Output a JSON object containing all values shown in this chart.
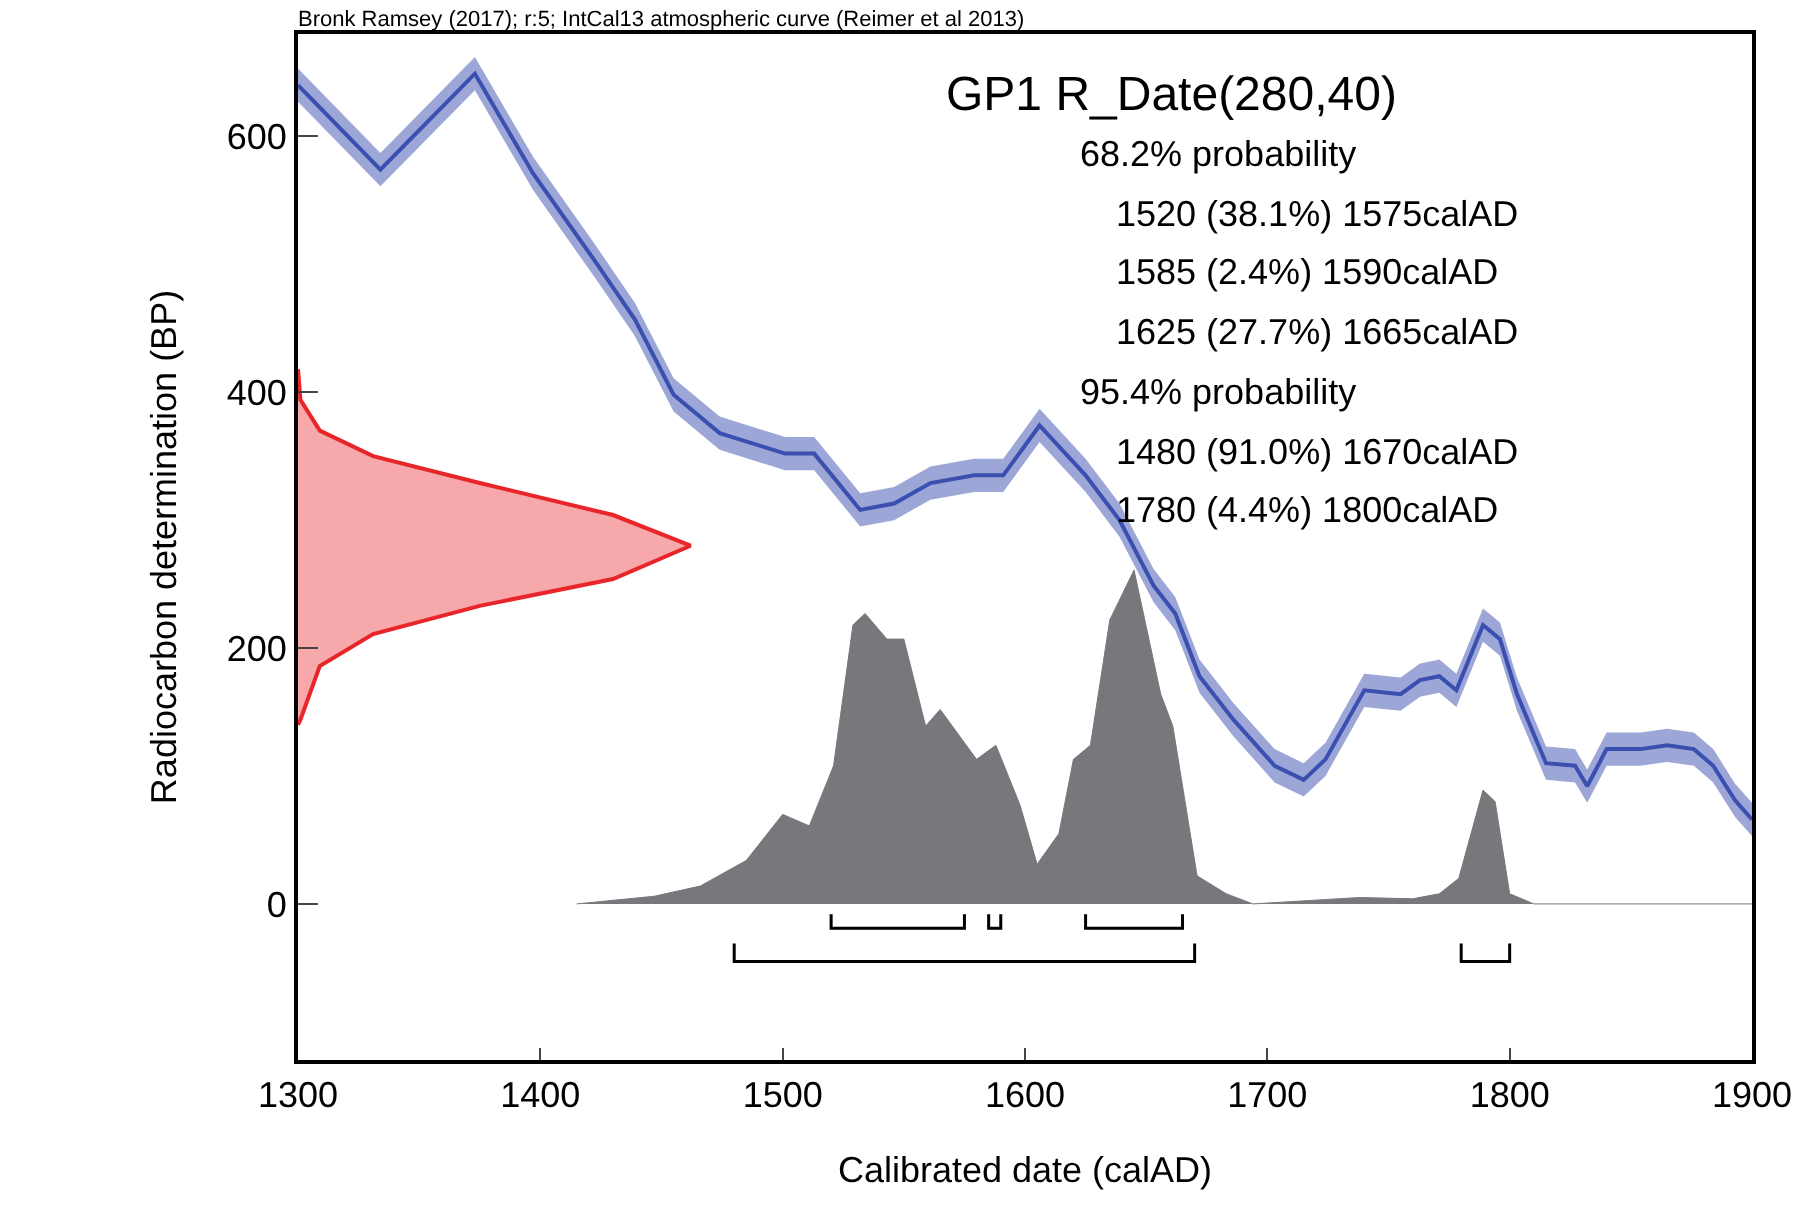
{
  "chart_data": {
    "type": "line",
    "title": "Bronk Ramsey (2017); r:5; IntCal13 atmospheric curve (Reimer et al 2013)",
    "subtitle": "GP1 R_Date(280,40)",
    "xlabel": "Calibrated date (calAD)",
    "ylabel": "Radiocarbon determination (BP)",
    "annotations": [
      "68.2% probability",
      "  1520 (38.1%) 1575calAD",
      "  1585 (2.4%) 1590calAD",
      "  1625 (27.7%) 1665calAD",
      "95.4% probability",
      "  1480 (91.0%) 1670calAD",
      "  1780 (4.4%) 1800calAD"
    ],
    "xlim": [
      1300,
      1900
    ],
    "xticks": [
      1300,
      1400,
      1500,
      1600,
      1700,
      1800,
      1900
    ],
    "ylim": [
      -122,
      680
    ],
    "yticks": [
      0,
      200,
      400,
      600
    ],
    "grid": false,
    "series": [
      {
        "type": "area",
        "color": "#e8262a",
        "x": [
          1300,
          1301,
          1309,
          1331,
          1375,
          1430,
          1462,
          1430,
          1375,
          1331,
          1309,
          1301,
          1300
        ],
        "values": [
          418,
          394,
          370,
          350,
          329,
          304,
          280,
          254,
          233,
          211,
          186,
          144,
          140
        ]
      },
      {
        "type": "area",
        "color": "#77787c",
        "x": [
          1415,
          1447,
          1466,
          1485,
          1500,
          1511,
          1521,
          1529,
          1534,
          1543,
          1550,
          1559,
          1565,
          1580,
          1588,
          1598,
          1605,
          1614,
          1620,
          1627,
          1635,
          1645,
          1656,
          1661,
          1671,
          1683,
          1694,
          1738,
          1760,
          1771,
          1779,
          1789,
          1794,
          1800,
          1810,
          1900
        ],
        "values": [
          0,
          6,
          14,
          34,
          70,
          61,
          108,
          218,
          227,
          207,
          207,
          139,
          152,
          113,
          124,
          77,
          31,
          55,
          113,
          124,
          222,
          261,
          164,
          139,
          22,
          8,
          0,
          5,
          4,
          8,
          20,
          89,
          80,
          8,
          0,
          0
        ]
      },
      {
        "color": "#3a4fb0",
        "x": [
          1300,
          1334,
          1373,
          1397,
          1422,
          1439,
          1455,
          1474,
          1501,
          1513,
          1532,
          1546,
          1561,
          1579,
          1591,
          1606,
          1625,
          1639,
          1653,
          1662,
          1672,
          1686,
          1703,
          1715,
          1724,
          1740,
          1755,
          1763,
          1771,
          1778,
          1789,
          1796,
          1803,
          1815,
          1827,
          1832,
          1840,
          1854,
          1865,
          1876,
          1884,
          1893,
          1900
        ],
        "values": [
          640,
          574,
          649,
          571,
          504,
          457,
          398,
          368,
          352,
          352,
          308,
          313,
          329,
          335,
          335,
          374,
          335,
          300,
          249,
          227,
          178,
          144,
          108,
          97,
          113,
          167,
          164,
          175,
          178,
          167,
          218,
          207,
          164,
          110,
          108,
          92,
          121,
          121,
          124,
          121,
          108,
          81,
          66
        ],
        "lower": [
          627,
          561,
          636,
          558,
          491,
          444,
          385,
          355,
          339,
          339,
          295,
          300,
          316,
          322,
          322,
          361,
          322,
          287,
          236,
          214,
          165,
          131,
          95,
          84,
          100,
          154,
          151,
          162,
          165,
          154,
          205,
          194,
          151,
          97,
          95,
          79,
          108,
          108,
          111,
          108,
          95,
          68,
          53
        ],
        "upper": [
          653,
          587,
          662,
          584,
          517,
          470,
          411,
          381,
          365,
          365,
          321,
          326,
          342,
          348,
          348,
          387,
          348,
          313,
          262,
          240,
          191,
          157,
          121,
          110,
          126,
          180,
          177,
          188,
          191,
          180,
          231,
          220,
          177,
          123,
          121,
          105,
          134,
          134,
          137,
          134,
          121,
          94,
          79
        ]
      },
      {
        "color": "#000000",
        "x": [
          1520,
          1520,
          1575,
          1575,
          null,
          1585,
          1585,
          1590,
          1590,
          null,
          1625,
          1625,
          1665,
          1665
        ],
        "values": [
          -8,
          -19,
          -19,
          -8,
          null,
          -8,
          -19,
          -19,
          -8,
          null,
          -8,
          -19,
          -19,
          -8
        ]
      },
      {
        "color": "#000000",
        "x": [
          1480,
          1480,
          1670,
          1670,
          null,
          1780,
          1780,
          1800,
          1800
        ],
        "values": [
          -31,
          -45,
          -45,
          -31,
          null,
          -31,
          -45,
          -45,
          -31
        ]
      }
    ]
  }
}
